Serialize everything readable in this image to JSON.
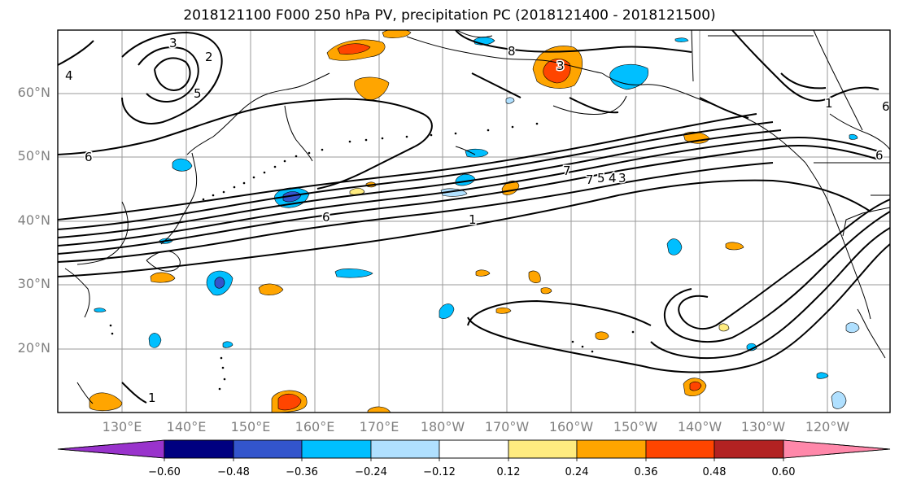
{
  "title": "2018121100 F000 250 hPa PV, precipitation PC (2018121400 - 2018121500)",
  "lat_labels": [
    "60°N",
    "50°N",
    "40°N",
    "30°N",
    "20°N"
  ],
  "lon_labels": [
    "130°E",
    "140°E",
    "150°E",
    "160°E",
    "170°E",
    "180°W",
    "170°W",
    "160°W",
    "150°W",
    "140°W",
    "130°W",
    "120°W"
  ],
  "colorbar": {
    "ticks": [
      "−0.60",
      "−0.48",
      "−0.36",
      "−0.24",
      "−0.12",
      "0.12",
      "0.24",
      "0.36",
      "0.48",
      "0.60"
    ],
    "colors": [
      "#9933cc",
      "#000080",
      "#3355cc",
      "#00bfff",
      "#b0e0ff",
      "#ffffff",
      "#ffec80",
      "#ffa500",
      "#ff4500",
      "#b22222",
      "#ff88aa"
    ]
  },
  "contour_labels": [
    "3",
    "2",
    "4",
    "5",
    "7",
    "1",
    "6",
    "6",
    "1",
    "7",
    "5",
    "4",
    "3",
    "1",
    "8",
    "3",
    "6",
    "6"
  ],
  "colors": {
    "positive": "#ffa500",
    "strong_positive": "#ff4500",
    "negative": "#00bfff",
    "strong_negative": "#3355cc"
  }
}
